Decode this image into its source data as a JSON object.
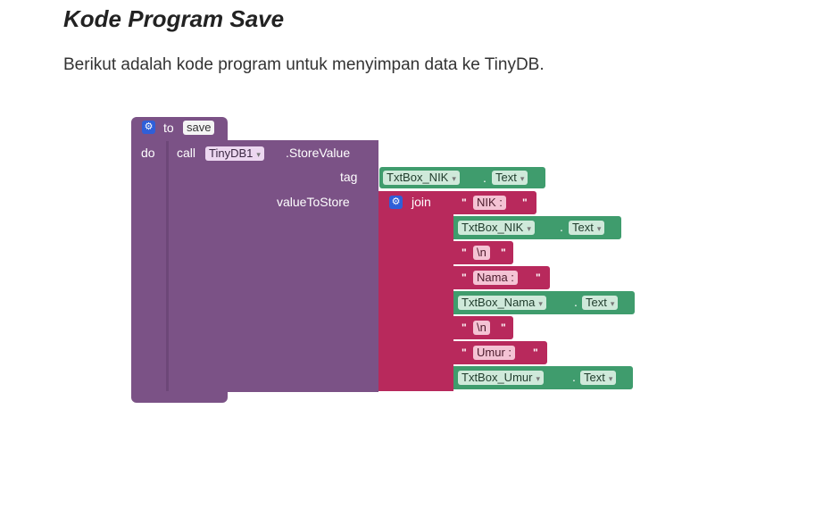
{
  "heading": "Kode Program Save",
  "description": "Berikut adalah kode program untuk menyimpan data ke TinyDB.",
  "blocks": {
    "procedure": {
      "to_label": "to",
      "name": "save",
      "do_label": "do"
    },
    "call": {
      "call_label": "call",
      "component": "TinyDB1",
      "method": ".StoreValue",
      "tag_label": "tag",
      "value_label": "valueToStore"
    },
    "tag_getter": {
      "component": "TxtBox_NIK",
      "property": "Text"
    },
    "join_label": "join",
    "join_items": [
      {
        "kind": "text",
        "value": "NIK : "
      },
      {
        "kind": "getter",
        "component": "TxtBox_NIK",
        "property": "Text"
      },
      {
        "kind": "text",
        "value": "\\n"
      },
      {
        "kind": "text",
        "value": "Nama : "
      },
      {
        "kind": "getter",
        "component": "TxtBox_Nama",
        "property": "Text"
      },
      {
        "kind": "text",
        "value": "\\n"
      },
      {
        "kind": "text",
        "value": "Umur : "
      },
      {
        "kind": "getter",
        "component": "TxtBox_Umur",
        "property": "Text"
      }
    ],
    "quote_mark": "\"",
    "dot": "."
  },
  "colors": {
    "procedure": "#7b5286",
    "join": "#b8295c",
    "getter": "#3f9c6d",
    "mutator_icon": "#2f5fd8"
  },
  "icons": {
    "mutator": "gear-icon",
    "dropdown": "caret-down-icon"
  }
}
